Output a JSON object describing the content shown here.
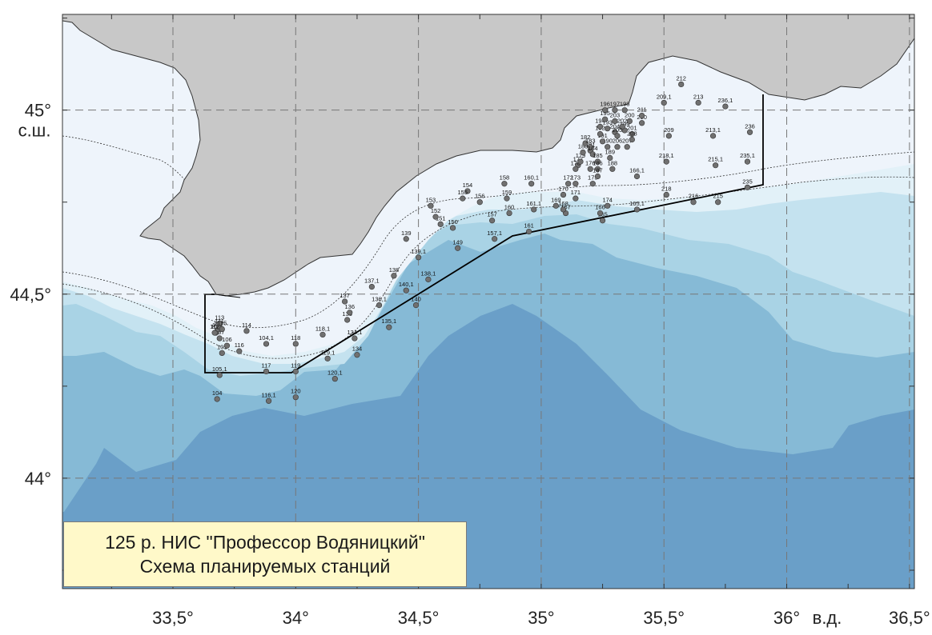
{
  "map": {
    "lon_range": [
      33.05,
      36.52
    ],
    "lat_range": [
      43.7,
      45.26
    ],
    "x_axis": {
      "ticks": [
        33.5,
        34.0,
        34.5,
        35.0,
        35.5,
        36.0,
        36.5
      ],
      "labels": [
        "33,5°",
        "34°",
        "34,5°",
        "35°",
        "35,5°",
        "36°",
        "36,5°"
      ],
      "unit": "в.д."
    },
    "y_axis": {
      "ticks": [
        45.0,
        44.5,
        44.0
      ],
      "labels": [
        "45°",
        "44,5°",
        "44°"
      ],
      "unit": "с.ш."
    },
    "grid": "dashed",
    "colors": {
      "land": "#c8c8c8",
      "shelf": "#eef4fb",
      "depth_1": "#e2f1f8",
      "depth_2": "#c4e2ef",
      "depth_3": "#a9d3e5",
      "depth_4": "#86bad6",
      "depth_5": "#6a9fc8",
      "station": "#707070",
      "route": "#000000"
    }
  },
  "caption": {
    "line1": "125 р. НИС \"Профессор Водяницкий\"",
    "line2": "Схема планируемых станций"
  },
  "stations": [
    {
      "id": "104",
      "lon": 33.68,
      "lat": 44.215
    },
    {
      "id": "105",
      "lon": 33.7,
      "lat": 44.34
    },
    {
      "id": "105,1",
      "lon": 33.69,
      "lat": 44.28
    },
    {
      "id": "106",
      "lon": 33.72,
      "lat": 44.36
    },
    {
      "id": "107",
      "lon": 33.69,
      "lat": 44.38
    },
    {
      "id": "108",
      "lon": 33.675,
      "lat": 44.395
    },
    {
      "id": "109",
      "lon": 33.68,
      "lat": 44.4
    },
    {
      "id": "110",
      "lon": 33.685,
      "lat": 44.405
    },
    {
      "id": "111",
      "lon": 33.69,
      "lat": 44.41
    },
    {
      "id": "112",
      "lon": 33.67,
      "lat": 44.395
    },
    {
      "id": "113",
      "lon": 33.69,
      "lat": 44.42
    },
    {
      "id": "114",
      "lon": 33.8,
      "lat": 44.4
    },
    {
      "id": "115",
      "lon": 33.7,
      "lat": 44.405
    },
    {
      "id": "116",
      "lon": 33.77,
      "lat": 44.345
    },
    {
      "id": "116,1",
      "lon": 33.89,
      "lat": 44.21
    },
    {
      "id": "117",
      "lon": 33.88,
      "lat": 44.29
    },
    {
      "id": "118",
      "lon": 34.0,
      "lat": 44.365
    },
    {
      "id": "118,1",
      "lon": 34.11,
      "lat": 44.39
    },
    {
      "id": "119",
      "lon": 34.0,
      "lat": 44.29
    },
    {
      "id": "119,1",
      "lon": 34.13,
      "lat": 44.325
    },
    {
      "id": "120",
      "lon": 34.0,
      "lat": 44.22
    },
    {
      "id": "120,1",
      "lon": 34.16,
      "lat": 44.27
    },
    {
      "id": "104,1",
      "lon": 33.88,
      "lat": 44.365
    },
    {
      "id": "134",
      "lon": 34.25,
      "lat": 44.335
    },
    {
      "id": "134,1",
      "lon": 34.24,
      "lat": 44.38
    },
    {
      "id": "135",
      "lon": 34.21,
      "lat": 44.43
    },
    {
      "id": "135,1",
      "lon": 34.38,
      "lat": 44.41
    },
    {
      "id": "136",
      "lon": 34.22,
      "lat": 44.45
    },
    {
      "id": "136,1",
      "lon": 34.34,
      "lat": 44.47
    },
    {
      "id": "137",
      "lon": 34.2,
      "lat": 44.48
    },
    {
      "id": "137,1",
      "lon": 34.31,
      "lat": 44.52
    },
    {
      "id": "138",
      "lon": 34.4,
      "lat": 44.55
    },
    {
      "id": "138,1",
      "lon": 34.54,
      "lat": 44.54
    },
    {
      "id": "139",
      "lon": 34.45,
      "lat": 44.65
    },
    {
      "id": "139,1",
      "lon": 34.5,
      "lat": 44.6
    },
    {
      "id": "140",
      "lon": 34.49,
      "lat": 44.47
    },
    {
      "id": "140,1",
      "lon": 34.45,
      "lat": 44.51
    },
    {
      "id": "149",
      "lon": 34.66,
      "lat": 44.625
    },
    {
      "id": "150",
      "lon": 34.64,
      "lat": 44.68
    },
    {
      "id": "151",
      "lon": 34.59,
      "lat": 44.69
    },
    {
      "id": "152",
      "lon": 34.57,
      "lat": 44.71
    },
    {
      "id": "153",
      "lon": 34.55,
      "lat": 44.74
    },
    {
      "id": "154",
      "lon": 34.7,
      "lat": 44.78
    },
    {
      "id": "155",
      "lon": 34.68,
      "lat": 44.76
    },
    {
      "id": "156",
      "lon": 34.75,
      "lat": 44.75
    },
    {
      "id": "157",
      "lon": 34.8,
      "lat": 44.7
    },
    {
      "id": "157,1",
      "lon": 34.81,
      "lat": 44.65
    },
    {
      "id": "158",
      "lon": 34.85,
      "lat": 44.8
    },
    {
      "id": "159",
      "lon": 34.86,
      "lat": 44.76
    },
    {
      "id": "160",
      "lon": 34.87,
      "lat": 44.72
    },
    {
      "id": "160,1",
      "lon": 34.96,
      "lat": 44.8
    },
    {
      "id": "161",
      "lon": 34.95,
      "lat": 44.67
    },
    {
      "id": "161,1",
      "lon": 34.97,
      "lat": 44.73
    },
    {
      "id": "165",
      "lon": 35.25,
      "lat": 44.7
    },
    {
      "id": "165,1",
      "lon": 35.39,
      "lat": 44.73
    },
    {
      "id": "166",
      "lon": 35.24,
      "lat": 44.72
    },
    {
      "id": "166,1",
      "lon": 35.39,
      "lat": 44.82
    },
    {
      "id": "167",
      "lon": 35.1,
      "lat": 44.72
    },
    {
      "id": "168",
      "lon": 35.09,
      "lat": 44.73
    },
    {
      "id": "169",
      "lon": 35.06,
      "lat": 44.74
    },
    {
      "id": "170",
      "lon": 35.09,
      "lat": 44.77
    },
    {
      "id": "171",
      "lon": 35.14,
      "lat": 44.76
    },
    {
      "id": "172",
      "lon": 35.11,
      "lat": 44.8
    },
    {
      "id": "173",
      "lon": 35.14,
      "lat": 44.8
    },
    {
      "id": "174",
      "lon": 35.27,
      "lat": 44.74
    },
    {
      "id": "175",
      "lon": 35.21,
      "lat": 44.8
    },
    {
      "id": "176",
      "lon": 35.2,
      "lat": 44.84
    },
    {
      "id": "177",
      "lon": 35.15,
      "lat": 44.85
    },
    {
      "id": "178",
      "lon": 35.14,
      "lat": 44.84
    },
    {
      "id": "179",
      "lon": 35.16,
      "lat": 44.86
    },
    {
      "id": "180",
      "lon": 35.17,
      "lat": 44.885
    },
    {
      "id": "181",
      "lon": 35.2,
      "lat": 44.89
    },
    {
      "id": "182",
      "lon": 35.18,
      "lat": 44.91
    },
    {
      "id": "183",
      "lon": 35.2,
      "lat": 44.9
    },
    {
      "id": "184",
      "lon": 35.21,
      "lat": 44.88
    },
    {
      "id": "185",
      "lon": 35.23,
      "lat": 44.86
    },
    {
      "id": "186",
      "lon": 35.23,
      "lat": 44.84
    },
    {
      "id": "187",
      "lon": 35.23,
      "lat": 44.82
    },
    {
      "id": "188",
      "lon": 35.29,
      "lat": 44.84
    },
    {
      "id": "189",
      "lon": 35.28,
      "lat": 44.87
    },
    {
      "id": "190",
      "lon": 35.27,
      "lat": 44.9
    },
    {
      "id": "191",
      "lon": 35.25,
      "lat": 44.915
    },
    {
      "id": "192",
      "lon": 35.24,
      "lat": 44.935
    },
    {
      "id": "193",
      "lon": 35.27,
      "lat": 44.95
    },
    {
      "id": "194",
      "lon": 35.24,
      "lat": 44.955
    },
    {
      "id": "195",
      "lon": 35.26,
      "lat": 44.975
    },
    {
      "id": "196",
      "lon": 35.26,
      "lat": 45.0
    },
    {
      "id": "197",
      "lon": 35.3,
      "lat": 45.0
    },
    {
      "id": "198",
      "lon": 35.34,
      "lat": 45.0
    },
    {
      "id": "199",
      "lon": 35.34,
      "lat": 44.945
    },
    {
      "id": "200",
      "lon": 35.36,
      "lat": 44.97
    },
    {
      "id": "201",
      "lon": 35.37,
      "lat": 44.935
    },
    {
      "id": "202",
      "lon": 35.33,
      "lat": 44.955
    },
    {
      "id": "203",
      "lon": 35.3,
      "lat": 44.97
    },
    {
      "id": "204",
      "lon": 35.3,
      "lat": 44.94
    },
    {
      "id": "205",
      "lon": 35.31,
      "lat": 44.93
    },
    {
      "id": "206",
      "lon": 35.31,
      "lat": 44.9
    },
    {
      "id": "207",
      "lon": 35.35,
      "lat": 44.9
    },
    {
      "id": "208",
      "lon": 35.37,
      "lat": 44.92
    },
    {
      "id": "209",
      "lon": 35.52,
      "lat": 44.93
    },
    {
      "id": "209,1",
      "lon": 35.5,
      "lat": 45.02
    },
    {
      "id": "210",
      "lon": 35.41,
      "lat": 44.965
    },
    {
      "id": "211",
      "lon": 35.41,
      "lat": 44.985
    },
    {
      "id": "212",
      "lon": 35.57,
      "lat": 45.07
    },
    {
      "id": "213",
      "lon": 35.64,
      "lat": 45.02
    },
    {
      "id": "213,1",
      "lon": 35.7,
      "lat": 44.93
    },
    {
      "id": "215",
      "lon": 35.72,
      "lat": 44.75
    },
    {
      "id": "215,1",
      "lon": 35.71,
      "lat": 44.85
    },
    {
      "id": "216",
      "lon": 35.62,
      "lat": 44.75
    },
    {
      "id": "218",
      "lon": 35.51,
      "lat": 44.77
    },
    {
      "id": "218,1",
      "lon": 35.51,
      "lat": 44.86
    },
    {
      "id": "235",
      "lon": 35.84,
      "lat": 44.79
    },
    {
      "id": "235,1",
      "lon": 35.84,
      "lat": 44.86
    },
    {
      "id": "236",
      "lon": 35.85,
      "lat": 44.94
    },
    {
      "id": "236,1",
      "lon": 35.75,
      "lat": 45.01
    }
  ]
}
